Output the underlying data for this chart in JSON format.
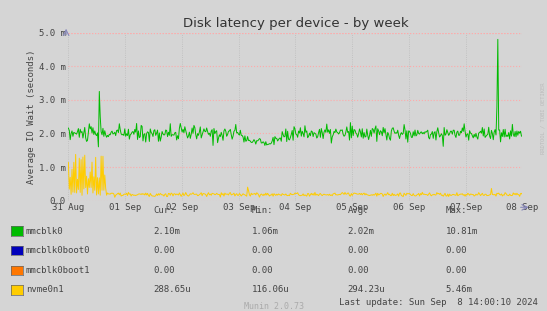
{
  "title": "Disk latency per device - by week",
  "ylabel": "Average IO Wait (seconds)",
  "background_color": "#d5d5d5",
  "plot_bg_color": "#d5d5d5",
  "x_labels": [
    "31 Aug",
    "01 Sep",
    "02 Sep",
    "03 Sep",
    "04 Sep",
    "05 Sep",
    "06 Sep",
    "07 Sep",
    "08 Sep"
  ],
  "ylim": [
    0,
    5.0
  ],
  "ytick_labels": [
    "0.0",
    "1.0 m",
    "2.0 m",
    "3.0 m",
    "4.0 m",
    "5.0 m"
  ],
  "ytick_vals": [
    0.0,
    1.0,
    2.0,
    3.0,
    4.0,
    5.0
  ],
  "red_grid_color": "#ffaaaa",
  "grey_grid_color": "#bbbbbb",
  "series_colors": [
    "#00bb00",
    "#0000bb",
    "#ff7700",
    "#ffcc00"
  ],
  "legend_items": [
    {
      "label": "mmcblk0",
      "color": "#00bb00",
      "cur": "2.10m",
      "min": "1.06m",
      "avg": "2.02m",
      "max": "10.81m"
    },
    {
      "label": "mmcblk0boot0",
      "color": "#0000bb",
      "cur": "0.00",
      "min": "0.00",
      "avg": "0.00",
      "max": "0.00"
    },
    {
      "label": "mmcblk0boot1",
      "color": "#ff7700",
      "cur": "0.00",
      "min": "0.00",
      "avg": "0.00",
      "max": "0.00"
    },
    {
      "label": "nvme0n1",
      "color": "#ffcc00",
      "cur": "288.65u",
      "min": "116.06u",
      "avg": "294.23u",
      "max": "5.46m"
    }
  ],
  "footer_center": "Munin 2.0.73",
  "footer_right": "Last update: Sun Sep  8 14:00:10 2024",
  "watermark": "RRDTOOL / TOBI OETIKER"
}
